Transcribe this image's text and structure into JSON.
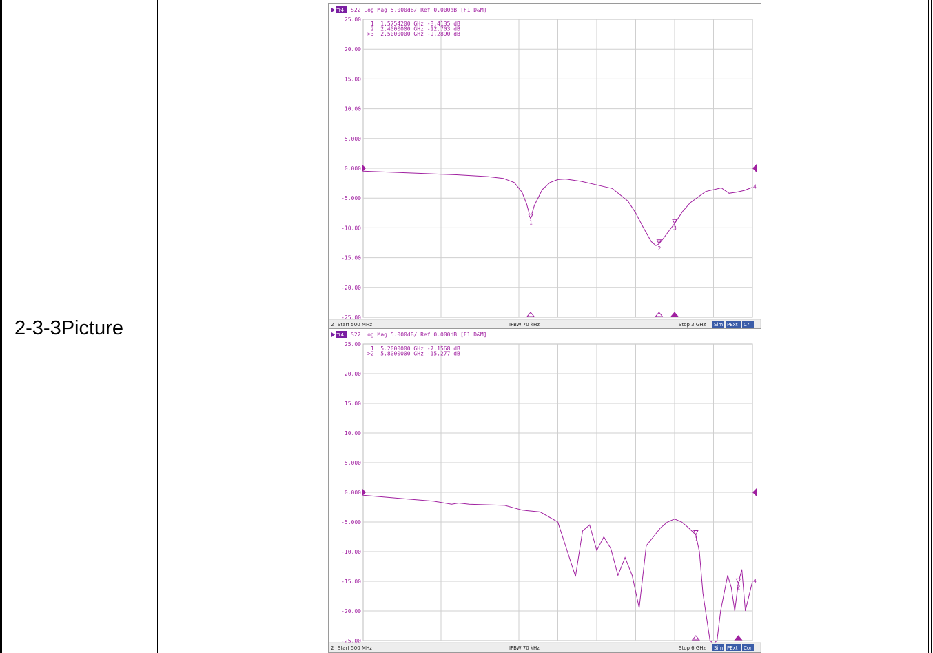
{
  "row_label": "2-3-3Picture",
  "colors": {
    "trace": "#a020a0",
    "grid": "#cfcfcf",
    "badge": "#7b1fa2",
    "button": "#3a5ca8"
  },
  "chart_data": [
    {
      "type": "line",
      "trace_badge": "Tr4",
      "header": "S22 Log Mag 5.000dB/ Ref 0.000dB [F1 D&M]",
      "markers_readout": [
        " 1  1.5754200 GHz -8.4135 dB",
        " 2  2.4000000 GHz -12.703 dB",
        ">3  2.5000000 GHz -9.2890 dB"
      ],
      "yticks": [
        "25.00",
        "20.00",
        "15.00",
        "10.00",
        "5.000",
        "0.000",
        "-5.000",
        "-10.00",
        "-15.00",
        "-20.00",
        "-25.00"
      ],
      "ylim": [
        -25,
        25
      ],
      "xlim": [
        0.5,
        3.0
      ],
      "x_unit": "GHz",
      "series": [
        {
          "x": [
            0.5,
            0.7,
            0.9,
            1.1,
            1.3,
            1.4,
            1.47,
            1.52,
            1.55,
            1.575,
            1.6,
            1.65,
            1.7,
            1.75,
            1.8,
            1.9,
            2.0,
            2.1,
            2.2,
            2.25,
            2.3,
            2.35,
            2.38,
            2.4,
            2.43,
            2.47,
            2.5,
            2.55,
            2.6,
            2.7,
            2.8,
            2.85,
            2.9,
            2.95,
            3.0
          ],
          "y": [
            -0.5,
            -0.7,
            -0.9,
            -1.1,
            -1.4,
            -1.7,
            -2.4,
            -4.0,
            -6.0,
            -8.41,
            -6.2,
            -3.6,
            -2.4,
            -1.9,
            -1.8,
            -2.2,
            -2.8,
            -3.4,
            -5.5,
            -7.5,
            -10.0,
            -12.3,
            -13.0,
            -12.7,
            -11.7,
            -10.3,
            -9.29,
            -7.3,
            -5.8,
            -3.9,
            -3.3,
            -4.2,
            -4.0,
            -3.7,
            -3.2
          ]
        }
      ],
      "markers": [
        {
          "label": "1",
          "x": 1.57542,
          "y": -8.4135
        },
        {
          "label": "2",
          "x": 2.4,
          "y": -12.703
        },
        {
          "label": "3",
          "x": 2.5,
          "y": -9.289
        },
        {
          "label": "4",
          "x": 3.0,
          "y": -3.2
        }
      ],
      "status": {
        "channel": "2",
        "start": "Start 500 MHz",
        "ifbw": "IFBW 70 kHz",
        "stop": "Stop 3 GHz",
        "buttons": [
          "Sim",
          "PExt",
          "C?"
        ]
      }
    },
    {
      "type": "line",
      "trace_badge": "Tr4",
      "header": "S22 Log Mag 5.000dB/ Ref 0.000dB [F1 D&M]",
      "markers_readout": [
        " 1  5.2000000 GHz -7.1568 dB",
        ">2  5.8000000 GHz -15.277 dB"
      ],
      "yticks": [
        "25.00",
        "20.00",
        "15.00",
        "10.00",
        "5.000",
        "0.000",
        "-5.000",
        "-10.00",
        "-15.00",
        "-20.00",
        "-25.00"
      ],
      "ylim": [
        -25,
        25
      ],
      "xlim": [
        0.5,
        6.0
      ],
      "x_unit": "GHz",
      "series": [
        {
          "x": [
            0.5,
            1.0,
            1.5,
            1.75,
            1.85,
            2.0,
            2.5,
            2.75,
            3.0,
            3.25,
            3.5,
            3.6,
            3.7,
            3.8,
            3.9,
            4.0,
            4.1,
            4.2,
            4.3,
            4.4,
            4.5,
            4.6,
            4.7,
            4.8,
            4.9,
            5.0,
            5.1,
            5.2,
            5.25,
            5.3,
            5.4,
            5.45,
            5.5,
            5.55,
            5.6,
            5.65,
            5.7,
            5.75,
            5.8,
            5.85,
            5.9,
            6.0
          ],
          "y": [
            -0.5,
            -1.0,
            -1.5,
            -2.0,
            -1.8,
            -2.0,
            -2.2,
            -3.0,
            -3.3,
            -5.0,
            -14.2,
            -6.5,
            -5.5,
            -9.8,
            -7.5,
            -9.5,
            -14.0,
            -11.0,
            -14.0,
            -19.5,
            -9.0,
            -7.5,
            -6.0,
            -5.0,
            -4.5,
            -5.0,
            -6.0,
            -7.16,
            -10.0,
            -17.0,
            -25.0,
            -25.5,
            -25.0,
            -20.0,
            -17.0,
            -14.0,
            -16.0,
            -20.0,
            -15.28,
            -13.0,
            -20.0,
            -15.0
          ]
        }
      ],
      "markers": [
        {
          "label": "1",
          "x": 5.2,
          "y": -7.1568
        },
        {
          "label": "2",
          "x": 5.8,
          "y": -15.277
        },
        {
          "label": "4",
          "x": 6.0,
          "y": -15.0
        }
      ],
      "status": {
        "channel": "2",
        "start": "Start 500 MHz",
        "ifbw": "IFBW 70 kHz",
        "stop": "Stop 6 GHz",
        "buttons": [
          "Sim",
          "PExt",
          "Cor"
        ]
      }
    }
  ]
}
